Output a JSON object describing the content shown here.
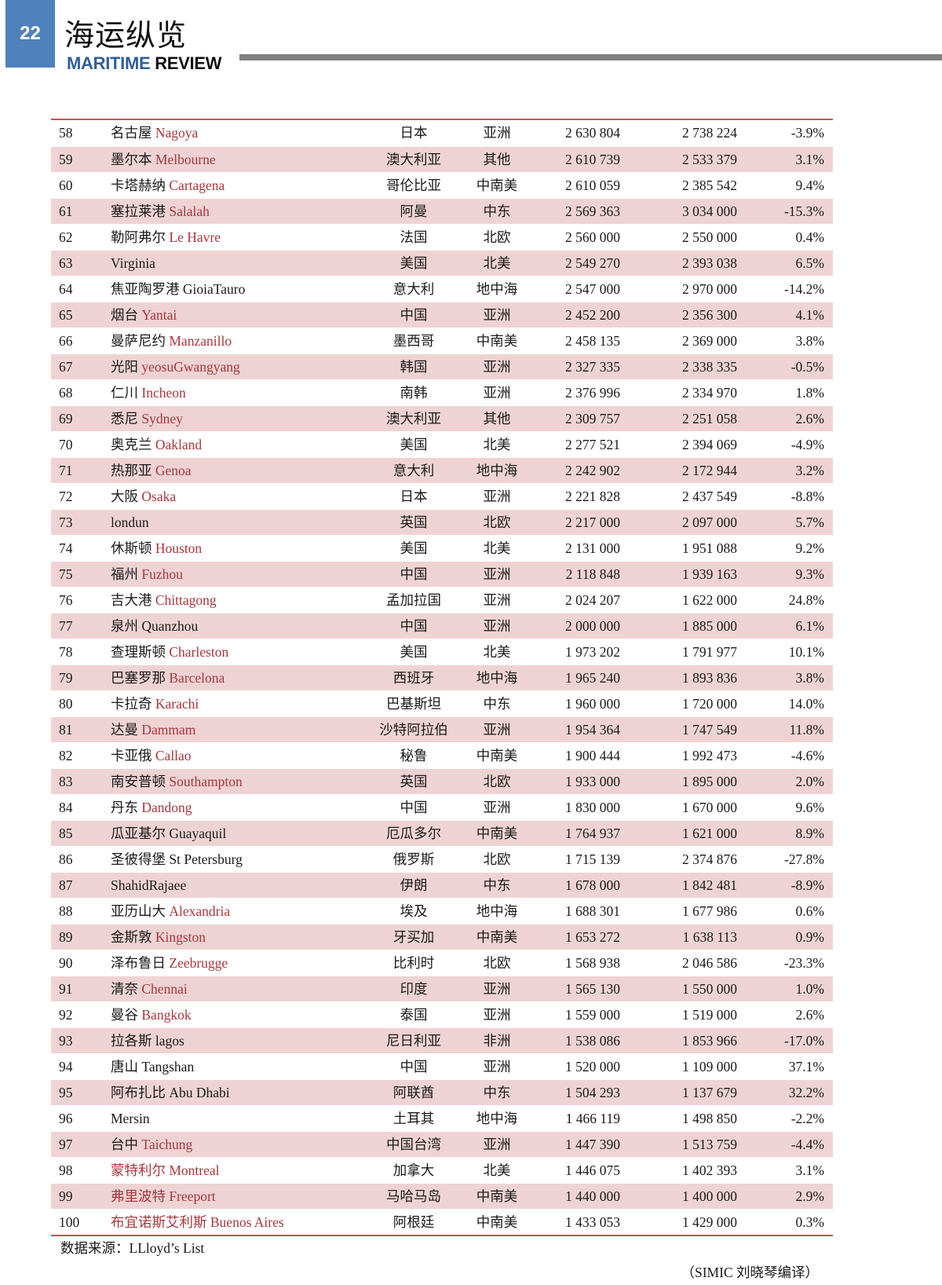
{
  "header": {
    "page_number": "22",
    "title_cn": "海运纵览",
    "title_en_1": "MARITIME",
    "title_en_2": "REVIEW"
  },
  "colors": {
    "badge": "#4f81bd",
    "accent_red": "#a8363b",
    "rule": "#c9504f",
    "row_alt": "#efd3d4",
    "brand_blue": "#2f5f9a"
  },
  "rows": [
    {
      "rank": "58",
      "cn": "名古屋",
      "en": "Nagoya",
      "red": "en",
      "country": "日本",
      "region": "亚洲",
      "v1": "2 630 804",
      "v2": "2 738 224",
      "pct": "-3.9%"
    },
    {
      "rank": "59",
      "cn": "墨尔本",
      "en": "Melbourne",
      "red": "en",
      "country": "澳大利亚",
      "region": "其他",
      "v1": "2 610 739",
      "v2": "2 533 379",
      "pct": "3.1%"
    },
    {
      "rank": "60",
      "cn": "卡塔赫纳",
      "en": "Cartagena",
      "red": "en",
      "country": "哥伦比亚",
      "region": "中南美",
      "v1": "2 610 059",
      "v2": "2 385 542",
      "pct": "9.4%"
    },
    {
      "rank": "61",
      "cn": "塞拉莱港",
      "en": "Salalah",
      "red": "en",
      "country": "阿曼",
      "region": "中东",
      "v1": "2 569 363",
      "v2": "3 034 000",
      "pct": "-15.3%"
    },
    {
      "rank": "62",
      "cn": "勒阿弗尔",
      "en": "Le Havre",
      "red": "en",
      "country": "法国",
      "region": "北欧",
      "v1": "2 560 000",
      "v2": "2 550 000",
      "pct": "0.4%"
    },
    {
      "rank": "63",
      "cn": "",
      "en": "Virginia",
      "red": "none",
      "country": "美国",
      "region": "北美",
      "v1": "2 549 270",
      "v2": "2 393 038",
      "pct": "6.5%"
    },
    {
      "rank": "64",
      "cn": "焦亚陶罗港",
      "en": "GioiaTauro",
      "red": "none",
      "country": "意大利",
      "region": "地中海",
      "v1": "2 547 000",
      "v2": "2 970 000",
      "pct": "-14.2%"
    },
    {
      "rank": "65",
      "cn": "烟台",
      "en": "Yantai",
      "red": "en",
      "country": "中国",
      "region": "亚洲",
      "v1": "2 452 200",
      "v2": "2 356 300",
      "pct": "4.1%"
    },
    {
      "rank": "66",
      "cn": "曼萨尼约",
      "en": "Manzanillo",
      "red": "en",
      "country": "墨西哥",
      "region": "中南美",
      "v1": "2 458 135",
      "v2": "2 369 000",
      "pct": "3.8%"
    },
    {
      "rank": "67",
      "cn": "光阳",
      "en": "yeosuGwangyang",
      "red": "en",
      "country": "韩国",
      "region": "亚洲",
      "v1": "2 327 335",
      "v2": "2 338 335",
      "pct": "-0.5%"
    },
    {
      "rank": "68",
      "cn": "仁川",
      "en": "Incheon",
      "red": "en",
      "country": "南韩",
      "region": "亚洲",
      "v1": "2 376 996",
      "v2": "2 334 970",
      "pct": "1.8%"
    },
    {
      "rank": "69",
      "cn": "悉尼",
      "en": "Sydney",
      "red": "en",
      "country": "澳大利亚",
      "region": "其他",
      "v1": "2 309 757",
      "v2": "2 251 058",
      "pct": "2.6%"
    },
    {
      "rank": "70",
      "cn": "奥克兰",
      "en": "Oakland",
      "red": "en",
      "country": "美国",
      "region": "北美",
      "v1": "2 277 521",
      "v2": "2 394 069",
      "pct": "-4.9%"
    },
    {
      "rank": "71",
      "cn": "热那亚",
      "en": "Genoa",
      "red": "en",
      "country": "意大利",
      "region": "地中海",
      "v1": "2 242 902",
      "v2": "2 172 944",
      "pct": "3.2%"
    },
    {
      "rank": "72",
      "cn": "大阪",
      "en": "Osaka",
      "red": "en",
      "country": "日本",
      "region": "亚洲",
      "v1": "2 221 828",
      "v2": "2 437 549",
      "pct": "-8.8%"
    },
    {
      "rank": "73",
      "cn": "",
      "en": "londun",
      "red": "none",
      "country": "英国",
      "region": "北欧",
      "v1": "2 217 000",
      "v2": "2 097 000",
      "pct": "5.7%"
    },
    {
      "rank": "74",
      "cn": "休斯顿",
      "en": "Houston",
      "red": "en",
      "country": "美国",
      "region": "北美",
      "v1": "2 131 000",
      "v2": "1 951 088",
      "pct": "9.2%"
    },
    {
      "rank": "75",
      "cn": "福州",
      "en": "Fuzhou",
      "red": "en",
      "country": "中国",
      "region": "亚洲",
      "v1": "2 118 848",
      "v2": "1 939 163",
      "pct": "9.3%"
    },
    {
      "rank": "76",
      "cn": "吉大港",
      "en": "Chittagong",
      "red": "en",
      "country": "孟加拉国",
      "region": "亚洲",
      "v1": "2 024 207",
      "v2": "1 622 000",
      "pct": "24.8%"
    },
    {
      "rank": "77",
      "cn": "泉州",
      "en": "Quanzhou",
      "red": "none",
      "country": "中国",
      "region": "亚洲",
      "v1": "2 000 000",
      "v2": "1 885 000",
      "pct": "6.1%"
    },
    {
      "rank": "78",
      "cn": "查理斯顿",
      "en": "Charleston",
      "red": "en",
      "country": "美国",
      "region": "北美",
      "v1": "1 973 202",
      "v2": "1 791 977",
      "pct": "10.1%"
    },
    {
      "rank": "79",
      "cn": "巴塞罗那",
      "en": "Barcelona",
      "red": "en",
      "country": "西班牙",
      "region": "地中海",
      "v1": "1 965 240",
      "v2": "1 893 836",
      "pct": "3.8%"
    },
    {
      "rank": "80",
      "cn": "卡拉奇",
      "en": "Karachi",
      "red": "en",
      "country": "巴基斯坦",
      "region": "中东",
      "v1": "1 960 000",
      "v2": "1 720 000",
      "pct": "14.0%"
    },
    {
      "rank": "81",
      "cn": "达曼",
      "en": "Dammam",
      "red": "en",
      "country": "沙特阿拉伯",
      "region": "亚洲",
      "v1": "1 954 364",
      "v2": "1 747 549",
      "pct": "11.8%"
    },
    {
      "rank": "82",
      "cn": "卡亚俄",
      "en": "Callao",
      "red": "en",
      "country": "秘鲁",
      "region": "中南美",
      "v1": "1 900 444",
      "v2": "1 992 473",
      "pct": "-4.6%"
    },
    {
      "rank": "83",
      "cn": "南安普顿",
      "en": "Southampton",
      "red": "en",
      "country": "英国",
      "region": "北欧",
      "v1": "1 933 000",
      "v2": "1 895 000",
      "pct": "2.0%"
    },
    {
      "rank": "84",
      "cn": "丹东",
      "en": "Dandong",
      "red": "en",
      "country": "中国",
      "region": "亚洲",
      "v1": "1 830 000",
      "v2": "1 670 000",
      "pct": "9.6%"
    },
    {
      "rank": "85",
      "cn": "瓜亚基尔",
      "en": "Guayaquil",
      "red": "none",
      "country": "厄瓜多尔",
      "region": "中南美",
      "v1": "1 764 937",
      "v2": "1 621 000",
      "pct": "8.9%"
    },
    {
      "rank": "86",
      "cn": "圣彼得堡",
      "en": "St Petersburg",
      "red": "none",
      "country": "俄罗斯",
      "region": "北欧",
      "v1": "1 715 139",
      "v2": "2 374 876",
      "pct": "-27.8%"
    },
    {
      "rank": "87",
      "cn": "",
      "en": "ShahidRajaee",
      "red": "none",
      "country": "伊朗",
      "region": "中东",
      "v1": "1 678 000",
      "v2": "1 842 481",
      "pct": "-8.9%"
    },
    {
      "rank": "88",
      "cn": "亚历山大",
      "en": "Alexandria",
      "red": "en",
      "country": "埃及",
      "region": "地中海",
      "v1": "1 688 301",
      "v2": "1 677 986",
      "pct": "0.6%"
    },
    {
      "rank": "89",
      "cn": "金斯敦",
      "en": "Kingston",
      "red": "en",
      "country": "牙买加",
      "region": "中南美",
      "v1": "1 653 272",
      "v2": "1 638 113",
      "pct": "0.9%"
    },
    {
      "rank": "90",
      "cn": "泽布鲁日",
      "en": "Zeebrugge",
      "red": "en",
      "country": "比利时",
      "region": "北欧",
      "v1": "1 568 938",
      "v2": "2 046 586",
      "pct": "-23.3%"
    },
    {
      "rank": "91",
      "cn": "清奈",
      "en": "Chennai",
      "red": "en",
      "country": "印度",
      "region": "亚洲",
      "v1": "1 565 130",
      "v2": "1 550 000",
      "pct": "1.0%"
    },
    {
      "rank": "92",
      "cn": "曼谷",
      "en": "Bangkok",
      "red": "en",
      "country": "泰国",
      "region": "亚洲",
      "v1": "1 559 000",
      "v2": "1 519 000",
      "pct": "2.6%"
    },
    {
      "rank": "93",
      "cn": "拉各斯",
      "en": "lagos",
      "red": "none",
      "country": "尼日利亚",
      "region": "非洲",
      "v1": "1 538 086",
      "v2": "1 853 966",
      "pct": "-17.0%"
    },
    {
      "rank": "94",
      "cn": "唐山",
      "en": "Tangshan",
      "red": "none",
      "country": "中国",
      "region": "亚洲",
      "v1": "1 520 000",
      "v2": "1 109 000",
      "pct": "37.1%"
    },
    {
      "rank": "95",
      "cn": "阿布扎比",
      "en": "Abu Dhabi",
      "red": "none",
      "country": "阿联酋",
      "region": "中东",
      "v1": "1 504 293",
      "v2": "1 137 679",
      "pct": "32.2%"
    },
    {
      "rank": "96",
      "cn": "",
      "en": "Mersin",
      "red": "none",
      "country": "土耳其",
      "region": "地中海",
      "v1": "1 466 119",
      "v2": "1 498 850",
      "pct": "-2.2%"
    },
    {
      "rank": "97",
      "cn": "台中",
      "en": "Taichung",
      "red": "en",
      "country": "中国台湾",
      "region": "亚洲",
      "v1": "1 447 390",
      "v2": "1 513 759",
      "pct": "-4.4%"
    },
    {
      "rank": "98",
      "cn": "蒙特利尔",
      "en": "Montreal",
      "red": "all",
      "country": "加拿大",
      "region": "北美",
      "v1": "1 446 075",
      "v2": "1 402 393",
      "pct": "3.1%"
    },
    {
      "rank": "99",
      "cn": "弗里波特",
      "en": "Freeport",
      "red": "all",
      "country": "马哈马岛",
      "region": "中南美",
      "v1": "1 440 000",
      "v2": "1 400 000",
      "pct": "2.9%"
    },
    {
      "rank": "100",
      "cn": "布宜诺斯艾利斯",
      "en": "Buenos Aires",
      "red": "all",
      "country": "阿根廷",
      "region": "中南美",
      "v1": "1 433 053",
      "v2": "1 429 000",
      "pct": "0.3%"
    }
  ],
  "footer": {
    "source": "数据来源：LLloyd’s List",
    "credit": "（SIMIC 刘晓琴编译）"
  }
}
